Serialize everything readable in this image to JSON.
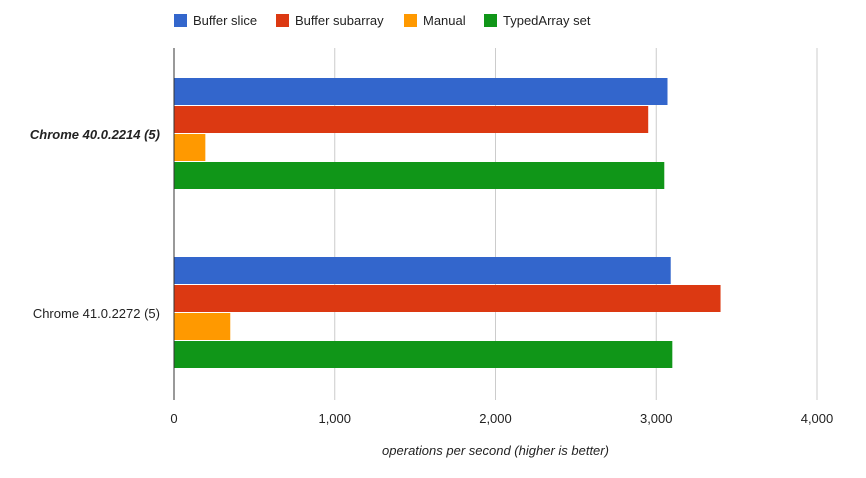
{
  "chart_data": {
    "type": "bar",
    "orientation": "horizontal",
    "categories": [
      "Chrome 40.0.2214 (5)",
      "Chrome 41.0.2272 (5)"
    ],
    "category_styles": [
      "bold-italic",
      "normal"
    ],
    "series": [
      {
        "name": "Buffer slice",
        "color": "#3366cc",
        "values": [
          3070,
          3090
        ]
      },
      {
        "name": "Buffer subarray",
        "color": "#dc3912",
        "values": [
          2950,
          3400
        ]
      },
      {
        "name": "Manual",
        "color": "#ff9900",
        "values": [
          195,
          350
        ]
      },
      {
        "name": "TypedArray set",
        "color": "#109618",
        "values": [
          3050,
          3100
        ]
      }
    ],
    "xlim": [
      0,
      4000
    ],
    "xticks": [
      0,
      1000,
      2000,
      3000,
      4000
    ],
    "xtick_labels": [
      "0",
      "1,000",
      "2,000",
      "3,000",
      "4,000"
    ],
    "xlabel": "operations per second (higher is better)",
    "ylabel": "",
    "title": "",
    "grid": true,
    "legend_position": "top"
  }
}
